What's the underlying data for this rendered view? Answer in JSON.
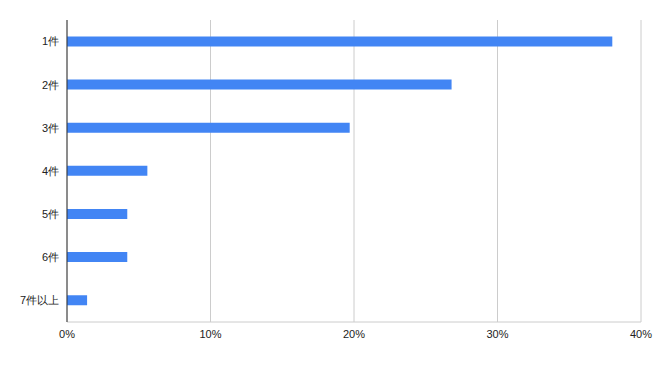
{
  "chart_data": {
    "type": "bar",
    "orientation": "horizontal",
    "categories": [
      "1件",
      "2件",
      "3件",
      "4件",
      "5件",
      "6件",
      "7件以上"
    ],
    "values": [
      38.0,
      26.8,
      19.7,
      5.6,
      4.2,
      4.2,
      1.4
    ],
    "color": "#4285f4",
    "xlim": [
      0,
      40
    ],
    "xticks": [
      {
        "value": 0,
        "label": "0%"
      },
      {
        "value": 10,
        "label": "10%"
      },
      {
        "value": 20,
        "label": "20%"
      },
      {
        "value": 30,
        "label": "30%"
      },
      {
        "value": 40,
        "label": "40%"
      }
    ],
    "grid": true
  }
}
